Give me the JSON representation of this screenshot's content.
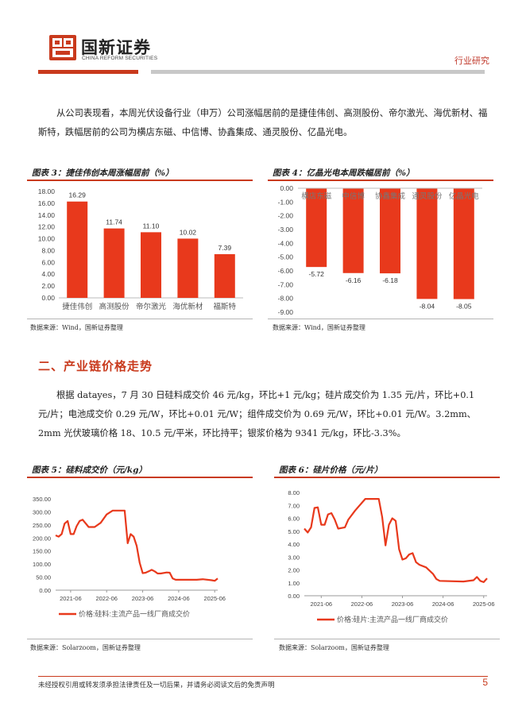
{
  "header": {
    "brand_cn": "国新证券",
    "brand_en": "CHINA REFORM SECURITIES",
    "doc_type": "行业研究",
    "colors": {
      "accent": "#c93a1d",
      "gray": "#c8c8c8"
    }
  },
  "paragraphs": {
    "p1": "从公司表现看，本周光伏设备行业（申万）公司涨幅居前的是捷佳伟创、高测股份、帝尔激光、海优新材、福斯特，跌幅居前的公司为横店东磁、中信博、协鑫集成、通灵股份、亿晶光电。",
    "p2": "根据 datayes，7 月 30 日硅料成交价 46 元/kg，环比+1 元/kg；硅片成交价为 1.35 元/片，环比+0.1 元/片；电池成交价 0.29 元/W，环比+0.01 元/W；组件成交价为 0.69 元/W，环比+0.01 元/W。3.2mm、2mm 光伏玻璃价格 18、10.5 元/平米，环比持平；银浆价格为 9341 元/kg，环比-3.3%。"
  },
  "section": {
    "title": "二、产业链价格走势"
  },
  "figures": {
    "fig3": {
      "title": "图表 3：捷佳伟创本周涨幅居前（%）",
      "source": "数据来源：Wind，国新证券整理"
    },
    "fig4": {
      "title": "图表 4：亿晶光电本周跌幅居前（%）",
      "source": "数据来源：Wind，国新证券整理"
    },
    "fig5": {
      "title": "图表 5：硅料成交价（元/kg）",
      "source": "数据来源：Solarzoom，国新证券整理"
    },
    "fig6": {
      "title": "图表 6：硅片价格（元/片）",
      "source": "数据来源：Solarzoom，国新证券整理"
    }
  },
  "chart_data": [
    {
      "type": "bar",
      "categories": [
        "捷佳伟创",
        "高测股份",
        "帝尔激光",
        "海优新材",
        "福斯特"
      ],
      "values": [
        16.29,
        11.74,
        11.1,
        10.02,
        7.39
      ],
      "value_labels": [
        "16.29",
        "11.74",
        "11.10",
        "10.02",
        "7.39"
      ],
      "ylim": [
        0,
        18
      ],
      "yticks": [
        "0.00",
        "2.00",
        "4.00",
        "6.00",
        "8.00",
        "10.00",
        "12.00",
        "14.00",
        "16.00",
        "18.00"
      ],
      "color": "#e8391c"
    },
    {
      "type": "bar",
      "categories": [
        "横店东磁",
        "中信博",
        "协鑫集成",
        "通灵股份",
        "亿晶光电"
      ],
      "values": [
        -5.72,
        -6.16,
        -6.18,
        -8.04,
        -8.05
      ],
      "value_labels": [
        "-5.72",
        "-6.16",
        "-6.18",
        "-8.04",
        "-8.05"
      ],
      "ylim": [
        -9,
        0
      ],
      "yticks": [
        "0.00",
        "-1.00",
        "-2.00",
        "-3.00",
        "-4.00",
        "-5.00",
        "-6.00",
        "-7.00",
        "-8.00",
        "-9.00"
      ],
      "color": "#e8391c"
    },
    {
      "type": "line",
      "series": [
        {
          "name": "价格:硅料:主流产品一线厂商成交价",
          "points": [
            [
              "2021-01",
              210
            ],
            [
              "2021-02",
              205
            ],
            [
              "2021-03",
              215
            ],
            [
              "2021-04",
              255
            ],
            [
              "2021-05",
              265
            ],
            [
              "2021-06",
              215
            ],
            [
              "2021-07",
              215
            ],
            [
              "2021-08",
              245
            ],
            [
              "2021-09",
              265
            ],
            [
              "2021-10",
              270
            ],
            [
              "2021-12",
              242
            ],
            [
              "2022-02",
              242
            ],
            [
              "2022-04",
              258
            ],
            [
              "2022-06",
              290
            ],
            [
              "2022-08",
              305
            ],
            [
              "2022-12",
              305
            ],
            [
              "2023-01",
              180
            ],
            [
              "2023-02",
              215
            ],
            [
              "2023-03",
              205
            ],
            [
              "2023-04",
              170
            ],
            [
              "2023-05",
              105
            ],
            [
              "2023-06",
              65
            ],
            [
              "2023-07",
              67
            ],
            [
              "2023-08",
              72
            ],
            [
              "2023-09",
              78
            ],
            [
              "2023-10",
              72
            ],
            [
              "2023-11",
              64
            ],
            [
              "2023-12",
              64
            ],
            [
              "2024-02",
              68
            ],
            [
              "2024-03",
              67
            ],
            [
              "2024-04",
              45
            ],
            [
              "2024-05",
              40
            ],
            [
              "2024-06",
              40
            ],
            [
              "2024-12",
              40
            ],
            [
              "2025-02",
              42
            ],
            [
              "2025-05",
              38
            ],
            [
              "2025-06",
              36
            ],
            [
              "2025-07",
              45
            ]
          ]
        }
      ],
      "ylim": [
        0,
        350
      ],
      "yticks": [
        "0.00",
        "50.00",
        "100.00",
        "150.00",
        "200.00",
        "250.00",
        "300.00",
        "350.00"
      ],
      "xticks": [
        "2021-06",
        "2022-06",
        "2023-06",
        "2024-06",
        "2025-06"
      ],
      "color": "#e8391c"
    },
    {
      "type": "line",
      "series": [
        {
          "name": "价格:硅片:主流产品一线厂商成交价",
          "points": [
            [
              "2021-01",
              5.2
            ],
            [
              "2021-02",
              4.9
            ],
            [
              "2021-03",
              5.3
            ],
            [
              "2021-04",
              6.8
            ],
            [
              "2021-05",
              6.85
            ],
            [
              "2021-06",
              5.5
            ],
            [
              "2021-07",
              5.5
            ],
            [
              "2021-08",
              6.3
            ],
            [
              "2021-09",
              6.4
            ],
            [
              "2021-10",
              5.9
            ],
            [
              "2021-11",
              5.2
            ],
            [
              "2022-01",
              5.3
            ],
            [
              "2022-02",
              5.9
            ],
            [
              "2022-04",
              6.6
            ],
            [
              "2022-07",
              7.5
            ],
            [
              "2022-11",
              7.5
            ],
            [
              "2022-12",
              6.1
            ],
            [
              "2023-01",
              3.9
            ],
            [
              "2023-02",
              5.5
            ],
            [
              "2023-03",
              6.0
            ],
            [
              "2023-04",
              5.8
            ],
            [
              "2023-05",
              3.6
            ],
            [
              "2023-06",
              2.8
            ],
            [
              "2023-07",
              2.9
            ],
            [
              "2023-08",
              3.2
            ],
            [
              "2023-09",
              3.3
            ],
            [
              "2023-10",
              2.6
            ],
            [
              "2023-11",
              2.4
            ],
            [
              "2024-01",
              2.2
            ],
            [
              "2024-03",
              1.7
            ],
            [
              "2024-04",
              1.3
            ],
            [
              "2024-05",
              1.15
            ],
            [
              "2024-12",
              1.1
            ],
            [
              "2025-03",
              1.2
            ],
            [
              "2025-04",
              1.45
            ],
            [
              "2025-05",
              1.15
            ],
            [
              "2025-06",
              1.05
            ],
            [
              "2025-07",
              1.35
            ]
          ]
        }
      ],
      "ylim": [
        0,
        8
      ],
      "yticks": [
        "0.00",
        "1.00",
        "2.00",
        "3.00",
        "4.00",
        "5.00",
        "6.00",
        "7.00",
        "8.00"
      ],
      "xticks": [
        "2021-06",
        "2022-06",
        "2023-06",
        "2024-06",
        "2025-06"
      ],
      "color": "#e8391c"
    }
  ],
  "footer": {
    "disclaimer": "未经授权引用或转发须承担法律责任及一切后果，并请务必阅读文后的免责声明",
    "page": "5"
  }
}
